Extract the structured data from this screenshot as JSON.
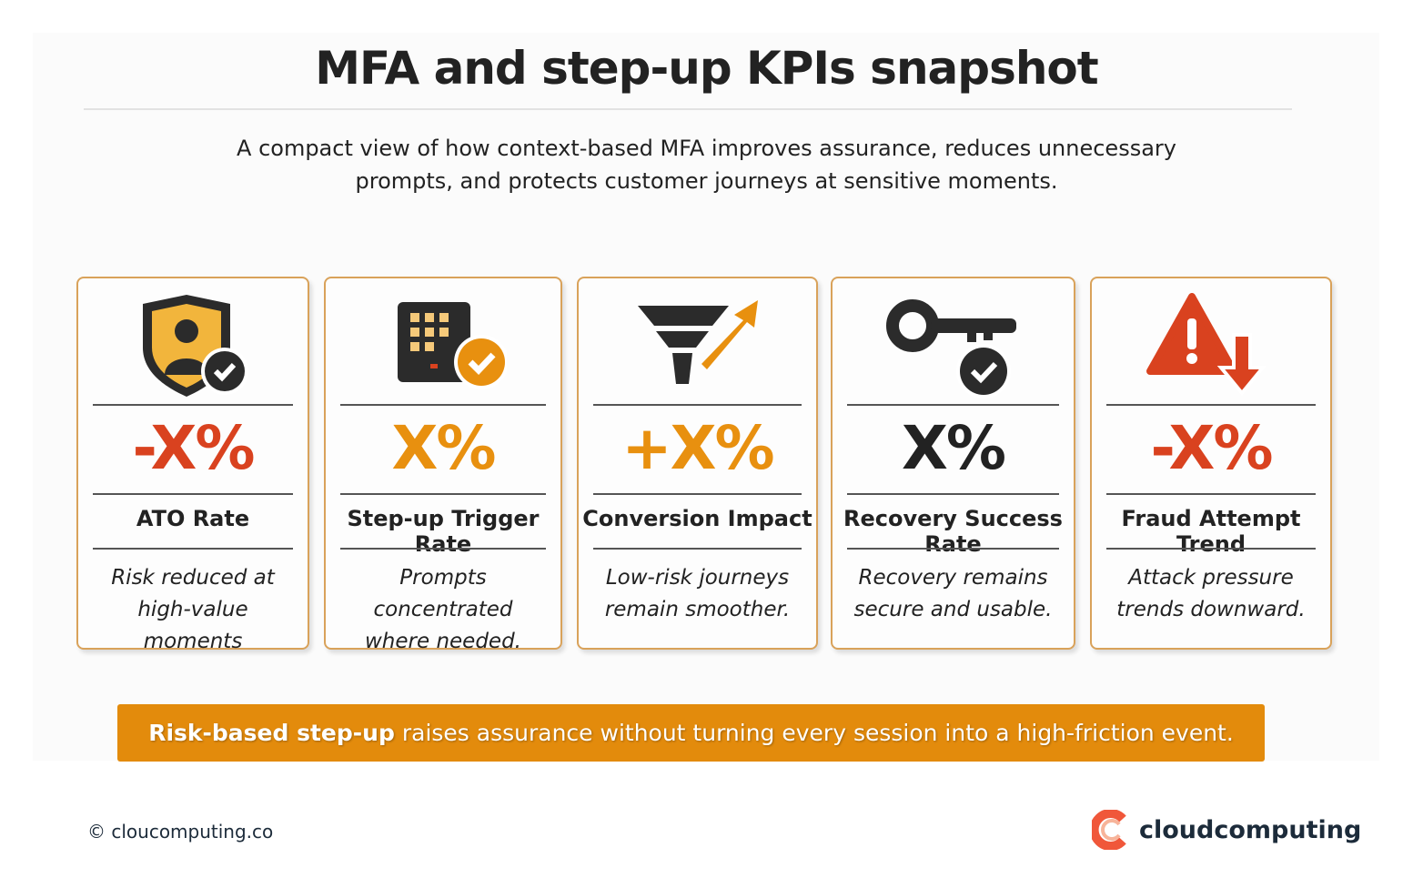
{
  "title": "MFA and step-up KPIs snapshot",
  "subtitle_line1": "A compact view of how context-based MFA improves assurance, reduces unnecessary",
  "subtitle_line2": "prompts, and protects customer journeys at sensitive moments.",
  "colors": {
    "accent": "#e38b0c",
    "negative": "#d9421f",
    "dark": "#2b2b2b",
    "border": "#d9a25a"
  },
  "cards": [
    {
      "icon": "shield-user-check-icon",
      "value": "-X%",
      "value_color": "#d9421f",
      "title": "ATO Rate",
      "desc1": "Risk reduced at",
      "desc2": "high-value moments"
    },
    {
      "icon": "keypad-check-icon",
      "value": "X%",
      "value_color": "#e8900f",
      "title": "Step-up Trigger Rate",
      "desc1": "Prompts concentrated",
      "desc2": "where needed."
    },
    {
      "icon": "funnel-arrow-up-icon",
      "value": "+X%",
      "value_color": "#e8900f",
      "title": "Conversion Impact",
      "desc1": "Low-risk journeys",
      "desc2": "remain smoother."
    },
    {
      "icon": "key-check-icon",
      "value": "X%",
      "value_color": "#222222",
      "title": "Recovery Success Rate",
      "desc1": "Recovery remains",
      "desc2": "secure and usable."
    },
    {
      "icon": "warning-arrow-down-icon",
      "value": "-X%",
      "value_color": "#d9421f",
      "title": "Fraud Attempt Trend",
      "desc1": "Attack pressure",
      "desc2": "trends downward."
    }
  ],
  "banner": {
    "bold": "Risk-based step-up",
    "rest": "raises assurance without turning every session into a high-friction event."
  },
  "footer": {
    "copyright": "© cloucomputing.co",
    "brand": "cloudcomputing"
  }
}
